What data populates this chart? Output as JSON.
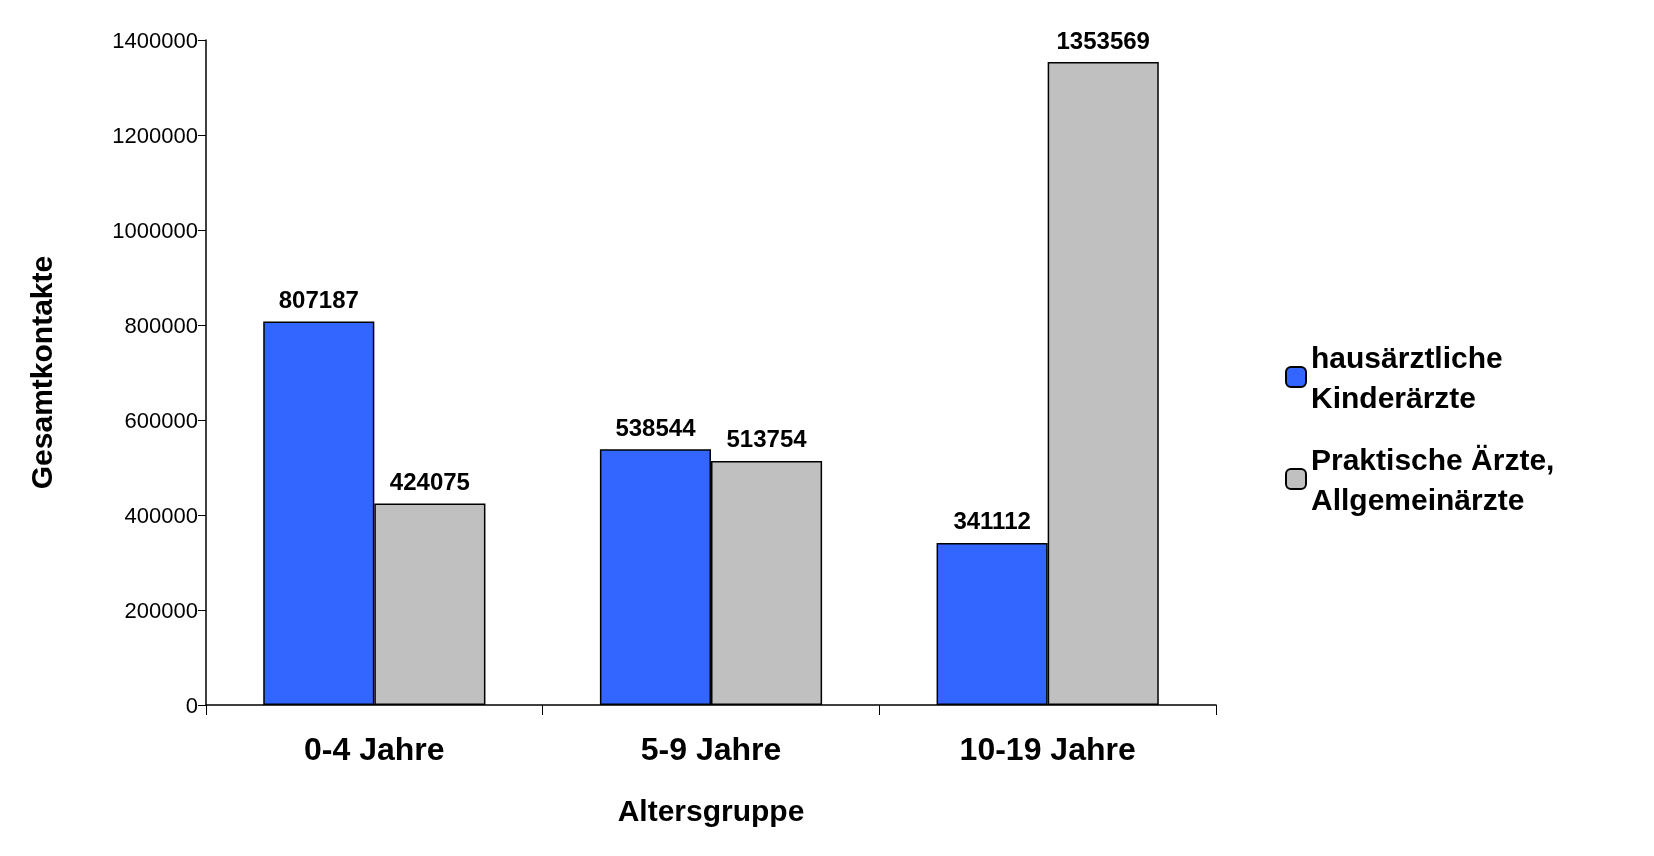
{
  "chart_data": {
    "type": "bar",
    "xlabel": "Altersgruppe",
    "ylabel": "Gesamtkontakte",
    "categories": [
      "0-4 Jahre",
      "5-9 Jahre",
      "10-19 Jahre"
    ],
    "series": [
      {
        "name": "hausärztliche Kinderärzte",
        "color": "#3366ff",
        "values": [
          807187,
          538544,
          341112
        ]
      },
      {
        "name": "Praktische Ärzte, Allgemeinärzte",
        "color": "#c0c0c0",
        "values": [
          424075,
          513754,
          1353569
        ]
      }
    ],
    "ylim": [
      0,
      1400000
    ],
    "yticks": [
      0,
      200000,
      400000,
      600000,
      800000,
      1000000,
      1200000,
      1400000
    ],
    "data_labels": true,
    "grid": false,
    "legend": "right"
  }
}
